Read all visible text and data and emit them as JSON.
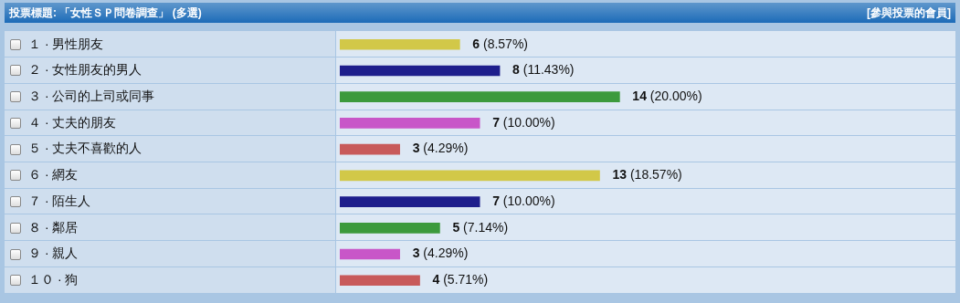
{
  "chart_data": {
    "type": "bar",
    "orientation": "horizontal",
    "title": "投票標題: 「女性ＳＰ問卷調查」 (多選)",
    "annotations": [
      "[參與投票的會員]"
    ],
    "categories": [
      "１ · 男性朋友",
      "２ · 女性朋友的男人",
      "３ · 公司的上司或同事",
      "４ · 丈夫的朋友",
      "５ · 丈夫不喜歡的人",
      "６ · 網友",
      "７ · 陌生人",
      "８ · 鄰居",
      "９ · 親人",
      "１０ · 狗"
    ],
    "values": [
      6,
      8,
      14,
      7,
      3,
      13,
      7,
      5,
      3,
      4
    ],
    "colors": [
      "#d2c848",
      "#1e1e8c",
      "#3c9a3c",
      "#c856c8",
      "#c85a5a",
      "#d2c848",
      "#1e1e8c",
      "#3c9a3c",
      "#c856c8",
      "#c85a5a"
    ],
    "value_labels": [
      "6 (8.57%)",
      "8 (11.43%)",
      "14 (20.00%)",
      "7 (10.00%)",
      "3 (4.29%)",
      "13 (18.57%)",
      "7 (10.00%)",
      "5 (7.14%)",
      "3 (4.29%)",
      "4 (5.71%)"
    ]
  }
}
